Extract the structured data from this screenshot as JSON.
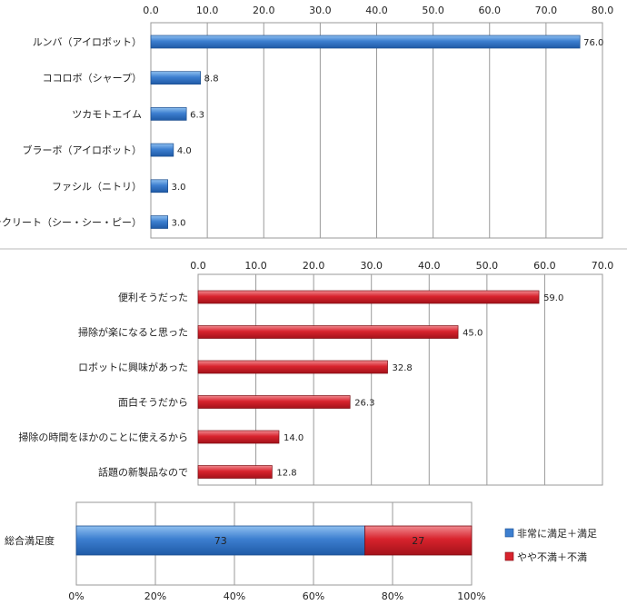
{
  "chart_data": [
    {
      "type": "bar",
      "orientation": "horizontal",
      "categories": [
        "ルンバ（アイロボット）",
        "ココロボ（シャープ）",
        "ツカモトエイム",
        "ブラーボ（アイロボット）",
        "ファシル（ニトリ）",
        "ラクリート（シー・シー・ピー）"
      ],
      "values": [
        76.0,
        8.8,
        6.3,
        4.0,
        3.0,
        3.0
      ],
      "xlim": [
        0,
        80
      ],
      "ticks": [
        "0.0",
        "10.0",
        "20.0",
        "30.0",
        "40.0",
        "50.0",
        "60.0",
        "70.0",
        "80.0"
      ],
      "axis_position": "top",
      "grid": true,
      "bar_color": "#3d7fd0"
    },
    {
      "type": "bar",
      "orientation": "horizontal",
      "categories": [
        "便利そうだった",
        "掃除が楽になると思った",
        "ロボットに興味があった",
        "面白そうだから",
        "掃除の時間をほかのことに使えるから",
        "話題の新製品なので"
      ],
      "values": [
        59.0,
        45.0,
        32.8,
        26.3,
        14.0,
        12.8
      ],
      "xlim": [
        0,
        70
      ],
      "ticks": [
        "0.0",
        "10.0",
        "20.0",
        "30.0",
        "40.0",
        "50.0",
        "60.0",
        "70.0"
      ],
      "axis_position": "top",
      "grid": true,
      "bar_color": "#d8232d"
    },
    {
      "type": "bar",
      "orientation": "horizontal",
      "stacked": true,
      "categories": [
        "総合満足度"
      ],
      "series": [
        {
          "name": "非常に満足＋満足",
          "values": [
            73
          ],
          "color": "#3d7fd0"
        },
        {
          "name": "やや不満＋不満",
          "values": [
            27
          ],
          "color": "#d8232d"
        }
      ],
      "xlim": [
        0,
        100
      ],
      "ticks": [
        "0%",
        "20%",
        "40%",
        "60%",
        "80%",
        "100%"
      ],
      "axis_position": "bottom",
      "grid": true,
      "legend": "right"
    }
  ]
}
